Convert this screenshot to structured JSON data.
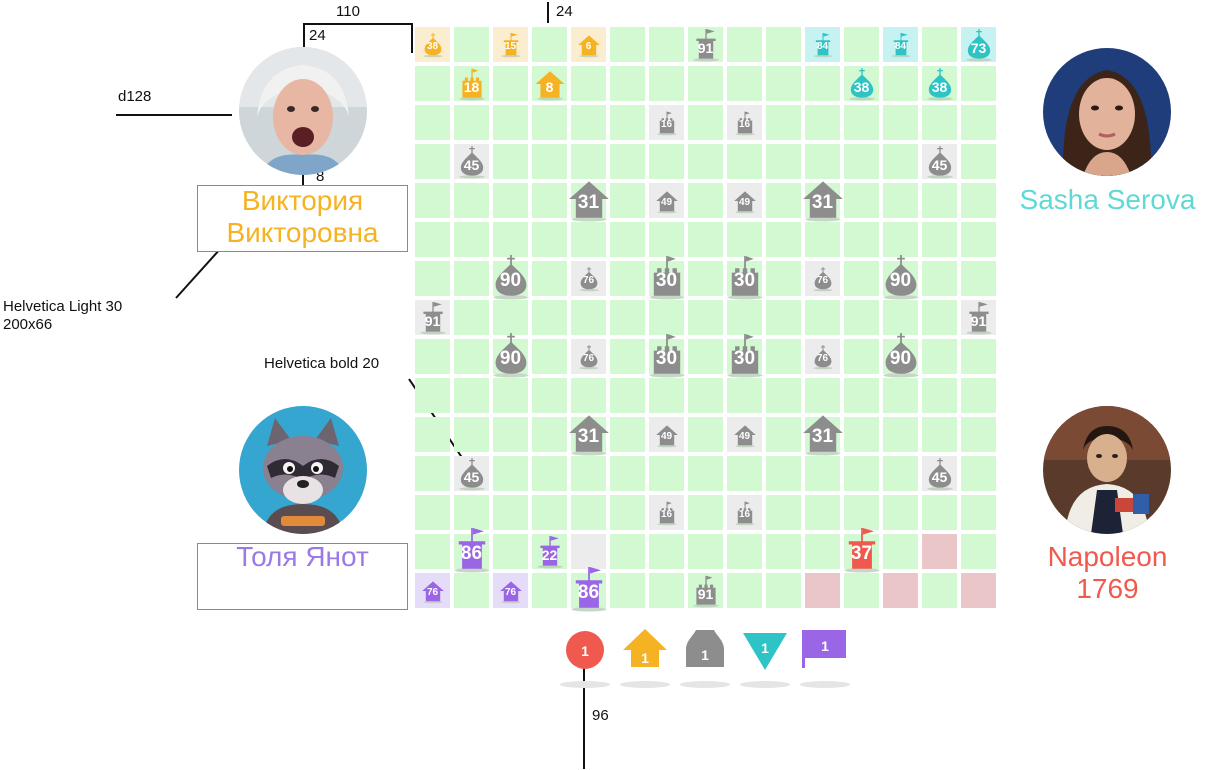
{
  "annotations": {
    "dim_110": "110",
    "dim_24_top": "24",
    "dim_24_left": "24",
    "avatar_size": "d128",
    "dim_8": "8",
    "name_font": "Helvetica Light 30",
    "name_box": "200x66",
    "label_font": "Helvetica bold 20",
    "dim_96": "96"
  },
  "players": [
    {
      "id": "viktoria",
      "name_line1": "Виктория",
      "name_line2": "Викторовна",
      "color": "#f5b324"
    },
    {
      "id": "sasha",
      "name_line1": "Sasha Serova",
      "name_line2": "",
      "color": "#5fd8d6"
    },
    {
      "id": "tolya",
      "name_line1": "Толя Янот",
      "name_line2": "",
      "color": "#9b79e6"
    },
    {
      "id": "napoleon",
      "name_line1": "Napoleon",
      "name_line2": "1769",
      "color": "#f05a4e"
    }
  ],
  "colors": {
    "orange": "#f5b324",
    "cyan": "#2ec4c6",
    "purple": "#9b66e6",
    "red": "#f05a4e",
    "gray": "#8d8d8d",
    "board_cell": "#d2f9d2",
    "grid_line": "#ffffff"
  },
  "board": {
    "rows": 15,
    "cols": 15,
    "tinted_cells": [
      {
        "r": 0,
        "c": 0,
        "color": "orange"
      },
      {
        "r": 0,
        "c": 2,
        "color": "orange"
      },
      {
        "r": 0,
        "c": 4,
        "color": "orange"
      },
      {
        "r": 0,
        "c": 10,
        "color": "cyan"
      },
      {
        "r": 0,
        "c": 12,
        "color": "cyan"
      },
      {
        "r": 0,
        "c": 14,
        "color": "cyan"
      },
      {
        "r": 14,
        "c": 0,
        "color": "purple"
      },
      {
        "r": 14,
        "c": 2,
        "color": "purple"
      },
      {
        "r": 13,
        "c": 13,
        "color": "red"
      },
      {
        "r": 14,
        "c": 10,
        "color": "red"
      },
      {
        "r": 14,
        "c": 12,
        "color": "red"
      },
      {
        "r": 14,
        "c": 14,
        "color": "red"
      },
      {
        "r": 2,
        "c": 6,
        "color": "gray"
      },
      {
        "r": 2,
        "c": 8,
        "color": "gray"
      },
      {
        "r": 3,
        "c": 1,
        "color": "gray"
      },
      {
        "r": 3,
        "c": 13,
        "color": "gray"
      },
      {
        "r": 4,
        "c": 6,
        "color": "gray"
      },
      {
        "r": 4,
        "c": 8,
        "color": "gray"
      },
      {
        "r": 6,
        "c": 4,
        "color": "gray"
      },
      {
        "r": 6,
        "c": 10,
        "color": "gray"
      },
      {
        "r": 7,
        "c": 0,
        "color": "gray"
      },
      {
        "r": 7,
        "c": 14,
        "color": "gray"
      },
      {
        "r": 8,
        "c": 4,
        "color": "gray"
      },
      {
        "r": 8,
        "c": 10,
        "color": "gray"
      },
      {
        "r": 10,
        "c": 6,
        "color": "gray"
      },
      {
        "r": 10,
        "c": 8,
        "color": "gray"
      },
      {
        "r": 11,
        "c": 1,
        "color": "gray"
      },
      {
        "r": 11,
        "c": 13,
        "color": "gray"
      },
      {
        "r": 12,
        "c": 6,
        "color": "gray"
      },
      {
        "r": 12,
        "c": 8,
        "color": "gray"
      },
      {
        "r": 13,
        "c": 4,
        "color": "gray"
      }
    ],
    "pieces": [
      {
        "r": 0,
        "c": 0,
        "type": "onion",
        "color": "orange",
        "value": "38",
        "size": "s"
      },
      {
        "r": 0,
        "c": 2,
        "type": "flag",
        "color": "orange",
        "value": "15",
        "size": "s"
      },
      {
        "r": 0,
        "c": 4,
        "type": "house",
        "color": "orange",
        "value": "6",
        "size": "s"
      },
      {
        "r": 0,
        "c": 7,
        "type": "flag",
        "color": "gray",
        "value": "91",
        "size": "m"
      },
      {
        "r": 0,
        "c": 10,
        "type": "flag",
        "color": "cyan",
        "value": "84",
        "size": "s"
      },
      {
        "r": 0,
        "c": 12,
        "type": "flag",
        "color": "cyan",
        "value": "84",
        "size": "s"
      },
      {
        "r": 0,
        "c": 14,
        "type": "onion",
        "color": "cyan",
        "value": "73",
        "size": "m"
      },
      {
        "r": 1,
        "c": 1,
        "type": "castle",
        "color": "orange",
        "value": "18",
        "size": "m"
      },
      {
        "r": 1,
        "c": 3,
        "type": "house",
        "color": "orange",
        "value": "8",
        "size": "m"
      },
      {
        "r": 1,
        "c": 11,
        "type": "onion",
        "color": "cyan",
        "value": "38",
        "size": "m"
      },
      {
        "r": 1,
        "c": 13,
        "type": "onion",
        "color": "cyan",
        "value": "38",
        "size": "m"
      },
      {
        "r": 2,
        "c": 6,
        "type": "castle",
        "color": "gray",
        "value": "16",
        "size": "s"
      },
      {
        "r": 2,
        "c": 8,
        "type": "castle",
        "color": "gray",
        "value": "16",
        "size": "s"
      },
      {
        "r": 3,
        "c": 1,
        "type": "onion",
        "color": "gray",
        "value": "45",
        "size": "m"
      },
      {
        "r": 3,
        "c": 13,
        "type": "onion",
        "color": "gray",
        "value": "45",
        "size": "m"
      },
      {
        "r": 4,
        "c": 4,
        "type": "house",
        "color": "gray",
        "value": "31",
        "size": "l"
      },
      {
        "r": 4,
        "c": 6,
        "type": "house",
        "color": "gray",
        "value": "49",
        "size": "s"
      },
      {
        "r": 4,
        "c": 8,
        "type": "house",
        "color": "gray",
        "value": "49",
        "size": "s"
      },
      {
        "r": 4,
        "c": 10,
        "type": "house",
        "color": "gray",
        "value": "31",
        "size": "l"
      },
      {
        "r": 6,
        "c": 2,
        "type": "onion",
        "color": "gray",
        "value": "90",
        "size": "l"
      },
      {
        "r": 6,
        "c": 4,
        "type": "onion",
        "color": "gray",
        "value": "76",
        "size": "s"
      },
      {
        "r": 6,
        "c": 6,
        "type": "castle",
        "color": "gray",
        "value": "30",
        "size": "l"
      },
      {
        "r": 6,
        "c": 8,
        "type": "castle",
        "color": "gray",
        "value": "30",
        "size": "l"
      },
      {
        "r": 6,
        "c": 10,
        "type": "onion",
        "color": "gray",
        "value": "76",
        "size": "s"
      },
      {
        "r": 6,
        "c": 12,
        "type": "onion",
        "color": "gray",
        "value": "90",
        "size": "l"
      },
      {
        "r": 7,
        "c": 0,
        "type": "flag",
        "color": "gray",
        "value": "91",
        "size": "m"
      },
      {
        "r": 7,
        "c": 14,
        "type": "flag",
        "color": "gray",
        "value": "91",
        "size": "m"
      },
      {
        "r": 8,
        "c": 2,
        "type": "onion",
        "color": "gray",
        "value": "90",
        "size": "l"
      },
      {
        "r": 8,
        "c": 4,
        "type": "onion",
        "color": "gray",
        "value": "76",
        "size": "s"
      },
      {
        "r": 8,
        "c": 6,
        "type": "castle",
        "color": "gray",
        "value": "30",
        "size": "l"
      },
      {
        "r": 8,
        "c": 8,
        "type": "castle",
        "color": "gray",
        "value": "30",
        "size": "l"
      },
      {
        "r": 8,
        "c": 10,
        "type": "onion",
        "color": "gray",
        "value": "76",
        "size": "s"
      },
      {
        "r": 8,
        "c": 12,
        "type": "onion",
        "color": "gray",
        "value": "90",
        "size": "l"
      },
      {
        "r": 10,
        "c": 4,
        "type": "house",
        "color": "gray",
        "value": "31",
        "size": "l"
      },
      {
        "r": 10,
        "c": 6,
        "type": "house",
        "color": "gray",
        "value": "49",
        "size": "s"
      },
      {
        "r": 10,
        "c": 8,
        "type": "house",
        "color": "gray",
        "value": "49",
        "size": "s"
      },
      {
        "r": 10,
        "c": 10,
        "type": "house",
        "color": "gray",
        "value": "31",
        "size": "l"
      },
      {
        "r": 11,
        "c": 1,
        "type": "onion",
        "color": "gray",
        "value": "45",
        "size": "m"
      },
      {
        "r": 11,
        "c": 13,
        "type": "onion",
        "color": "gray",
        "value": "45",
        "size": "m"
      },
      {
        "r": 12,
        "c": 6,
        "type": "castle",
        "color": "gray",
        "value": "16",
        "size": "s"
      },
      {
        "r": 12,
        "c": 8,
        "type": "castle",
        "color": "gray",
        "value": "16",
        "size": "s"
      },
      {
        "r": 13,
        "c": 1,
        "type": "flag",
        "color": "purple",
        "value": "86",
        "size": "l"
      },
      {
        "r": 13,
        "c": 3,
        "type": "flag",
        "color": "purple",
        "value": "22",
        "size": "m"
      },
      {
        "r": 13,
        "c": 11,
        "type": "flag",
        "color": "red",
        "value": "37",
        "size": "l"
      },
      {
        "r": 14,
        "c": 0,
        "type": "house",
        "color": "purple",
        "value": "76",
        "size": "s"
      },
      {
        "r": 14,
        "c": 2,
        "type": "house",
        "color": "purple",
        "value": "76",
        "size": "s"
      },
      {
        "r": 14,
        "c": 4,
        "type": "flag",
        "color": "purple",
        "value": "86",
        "size": "l"
      },
      {
        "r": 14,
        "c": 7,
        "type": "castle",
        "color": "gray",
        "value": "91",
        "size": "m"
      }
    ]
  },
  "legend": [
    {
      "shape": "circle",
      "color": "red",
      "value": "1"
    },
    {
      "shape": "house",
      "color": "orange",
      "value": "1"
    },
    {
      "shape": "bell",
      "color": "gray",
      "value": "1"
    },
    {
      "shape": "triangle",
      "color": "cyan",
      "value": "1"
    },
    {
      "shape": "flag",
      "color": "purple",
      "value": "1"
    }
  ]
}
